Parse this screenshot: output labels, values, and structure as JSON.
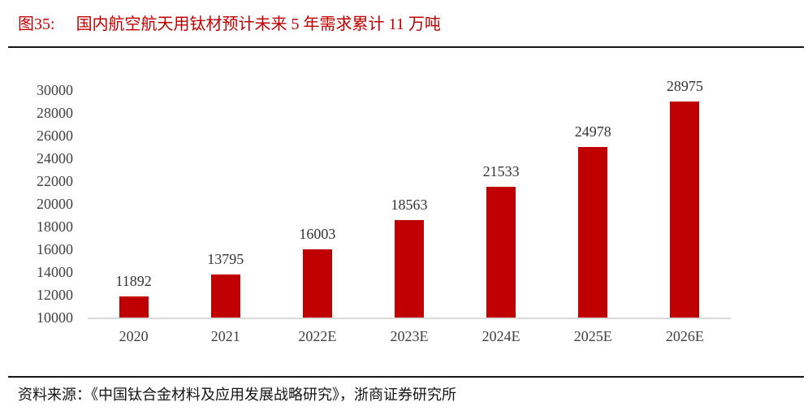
{
  "figure": {
    "label": "图35:",
    "title": "国内航空航天用钛材预计未来 5 年需求累计 11 万吨"
  },
  "footer": {
    "source_label": "资料来源：",
    "source_body": "《中国钛合金材料及应用发展战略研究》，浙商证券研究所"
  },
  "colors": {
    "bar": "#c00000",
    "accent": "#c00000",
    "axis_text": "#404040",
    "value_text": "#333333",
    "baseline": "#d9d9d9",
    "rule": "#161616",
    "footer_text": "#141414"
  },
  "chart_data": {
    "type": "bar",
    "categories": [
      "2020",
      "2021",
      "2022E",
      "2023E",
      "2024E",
      "2025E",
      "2026E"
    ],
    "values": [
      11892,
      13795,
      16003,
      18563,
      21533,
      24978,
      28975
    ],
    "title": "国内航空航天用钛材预计未来 5 年需求累计 11 万吨",
    "xlabel": "",
    "ylabel": "",
    "ylim": [
      10000,
      30000
    ],
    "yticks": [
      10000,
      12000,
      14000,
      16000,
      18000,
      20000,
      22000,
      24000,
      26000,
      28000,
      30000
    ],
    "grid": false,
    "legend": "none",
    "data_labels": true,
    "bar_color": "#c00000"
  }
}
